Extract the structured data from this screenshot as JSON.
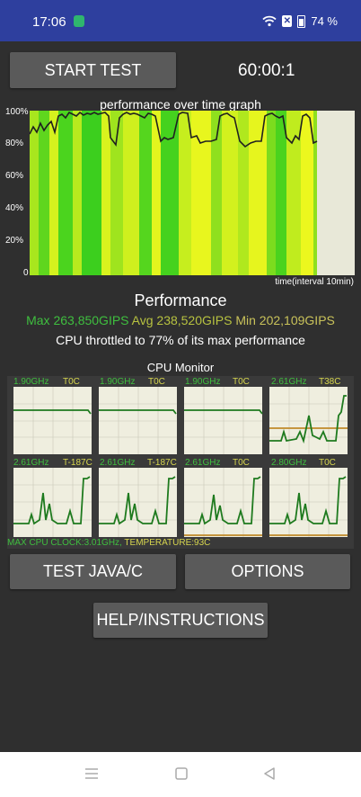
{
  "status_bar": {
    "time": "17:06",
    "battery": "74 %"
  },
  "controls": {
    "start_test_label": "START TEST",
    "timer": "60:00:1"
  },
  "graph": {
    "title": "performance over time graph",
    "y_ticks": [
      "100%",
      "80%",
      "60%",
      "40%",
      "20%",
      "0"
    ],
    "x_label": "time(interval 10min)"
  },
  "performance": {
    "title": "Performance",
    "max": "Max 263,850GIPS",
    "avg": "Avg 238,520GIPS",
    "min": "Min 202,109GIPS",
    "throttle_text": "CPU throttled to 77% of its max performance"
  },
  "cpu_monitor": {
    "title": "CPU Monitor",
    "cores": [
      {
        "freq": "1.90GHz",
        "temp": "T0C"
      },
      {
        "freq": "1.90GHz",
        "temp": "T0C"
      },
      {
        "freq": "1.90GHz",
        "temp": "T0C"
      },
      {
        "freq": "2.61GHz",
        "temp": "T38C"
      },
      {
        "freq": "2.61GHz",
        "temp": "T-187C"
      },
      {
        "freq": "2.61GHz",
        "temp": "T-187C"
      },
      {
        "freq": "2.61GHz",
        "temp": "T0C"
      },
      {
        "freq": "2.80GHz",
        "temp": "T0C"
      }
    ],
    "max_clock": "MAX CPU CLOCK:3.01GHz,",
    "temperature": "TEMPERATURE:93C"
  },
  "buttons": {
    "test_java": "TEST JAVA/C",
    "options": "OPTIONS",
    "help": "HELP/INSTRUCTIONS"
  },
  "colors": {
    "status_bar": "#2e3f9e",
    "green": "#7ed321",
    "yellow": "#d7d64e",
    "graph_bg": "#e8e8d8",
    "cpu_line": "#1e7a1e"
  },
  "icons": [
    "wifi-icon",
    "x-notification-icon",
    "battery-icon",
    "app-notification-icon",
    "menu-nav-icon",
    "home-nav-icon",
    "back-nav-icon"
  ]
}
